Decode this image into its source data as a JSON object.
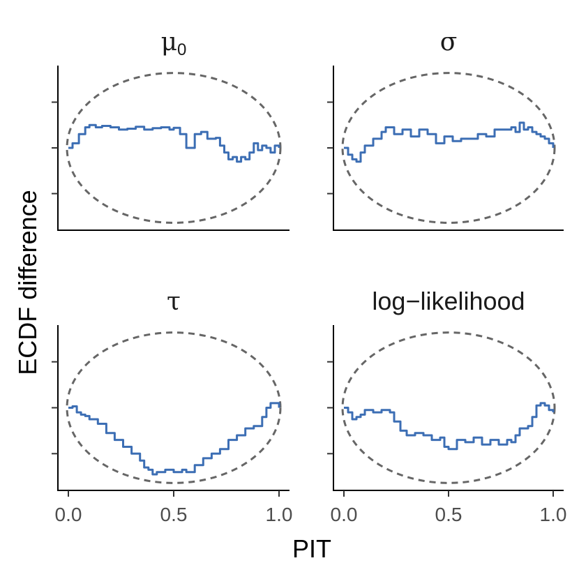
{
  "chart_data": {
    "type": "line",
    "xlabel": "PIT",
    "ylabel": "ECDF difference",
    "xlim": [
      0,
      1
    ],
    "ylim": [
      -0.18,
      0.18
    ],
    "x_ticks": [
      "0.0",
      "0.5",
      "1.0"
    ],
    "y_ticks_labeled": false,
    "grid": false,
    "legend": "none",
    "colors": {
      "ecdf": "#3c6eb4",
      "band": "#666666"
    },
    "panels": [
      {
        "title": "μ",
        "title_subscript": "0",
        "title_style": "greek",
        "ecdf": {
          "x": [
            0,
            0.02,
            0.05,
            0.08,
            0.1,
            0.13,
            0.16,
            0.2,
            0.24,
            0.28,
            0.32,
            0.36,
            0.4,
            0.44,
            0.48,
            0.5,
            0.53,
            0.56,
            0.6,
            0.63,
            0.66,
            0.7,
            0.72,
            0.74,
            0.76,
            0.78,
            0.8,
            0.82,
            0.84,
            0.86,
            0.88,
            0.9,
            0.92,
            0.94,
            0.96,
            0.98,
            1
          ],
          "y": [
            0,
            0.01,
            0.03,
            0.045,
            0.05,
            0.045,
            0.048,
            0.045,
            0.04,
            0.042,
            0.046,
            0.04,
            0.043,
            0.045,
            0.04,
            0.044,
            0.03,
            0.0,
            0.03,
            0.035,
            0.02,
            0.022,
            0.005,
            -0.01,
            -0.025,
            -0.02,
            -0.03,
            -0.02,
            -0.025,
            -0.01,
            0.01,
            -0.005,
            0.005,
            0.0,
            -0.01,
            0.005,
            0
          ]
        },
        "band": "ellipse"
      },
      {
        "title": "σ",
        "title_style": "greek",
        "ecdf": {
          "x": [
            0,
            0.02,
            0.04,
            0.06,
            0.08,
            0.1,
            0.14,
            0.18,
            0.2,
            0.24,
            0.28,
            0.32,
            0.36,
            0.4,
            0.44,
            0.48,
            0.52,
            0.56,
            0.6,
            0.64,
            0.68,
            0.72,
            0.76,
            0.8,
            0.82,
            0.84,
            0.86,
            0.88,
            0.9,
            0.92,
            0.94,
            0.96,
            0.98,
            1
          ],
          "y": [
            0,
            -0.015,
            -0.025,
            -0.03,
            -0.01,
            0.005,
            0.02,
            0.035,
            0.045,
            0.03,
            0.04,
            0.025,
            0.04,
            0.03,
            0.01,
            0.025,
            0.015,
            0.02,
            0.02,
            0.03,
            0.025,
            0.04,
            0.04,
            0.045,
            0.035,
            0.055,
            0.04,
            0.045,
            0.035,
            0.03,
            0.025,
            0.02,
            0.01,
            0
          ]
        },
        "band": "ellipse"
      },
      {
        "title": "τ",
        "title_style": "greek",
        "ecdf": {
          "x": [
            0,
            0.02,
            0.04,
            0.06,
            0.08,
            0.1,
            0.14,
            0.18,
            0.22,
            0.26,
            0.3,
            0.34,
            0.36,
            0.38,
            0.4,
            0.42,
            0.46,
            0.5,
            0.54,
            0.56,
            0.6,
            0.64,
            0.68,
            0.72,
            0.76,
            0.8,
            0.84,
            0.88,
            0.92,
            0.94,
            0.96,
            0.98,
            1
          ],
          "y": [
            0,
            0.003,
            -0.01,
            -0.015,
            -0.018,
            -0.025,
            -0.035,
            -0.055,
            -0.07,
            -0.085,
            -0.1,
            -0.115,
            -0.13,
            -0.135,
            -0.145,
            -0.14,
            -0.135,
            -0.14,
            -0.135,
            -0.14,
            -0.125,
            -0.11,
            -0.1,
            -0.09,
            -0.07,
            -0.06,
            -0.045,
            -0.04,
            -0.02,
            0.0,
            0.01,
            0.01,
            0.0
          ]
        },
        "band": "ellipse"
      },
      {
        "title": "log−likelihood",
        "title_style": "text",
        "ecdf": {
          "x": [
            0,
            0.02,
            0.04,
            0.06,
            0.08,
            0.1,
            0.14,
            0.18,
            0.22,
            0.24,
            0.27,
            0.3,
            0.34,
            0.38,
            0.42,
            0.46,
            0.48,
            0.5,
            0.54,
            0.58,
            0.62,
            0.66,
            0.7,
            0.74,
            0.78,
            0.8,
            0.82,
            0.84,
            0.88,
            0.9,
            0.92,
            0.94,
            0.96,
            0.98,
            1
          ],
          "y": [
            0,
            -0.01,
            -0.025,
            -0.02,
            -0.015,
            -0.005,
            -0.01,
            -0.005,
            -0.01,
            -0.03,
            -0.05,
            -0.06,
            -0.055,
            -0.06,
            -0.07,
            -0.065,
            -0.085,
            -0.09,
            -0.07,
            -0.075,
            -0.065,
            -0.08,
            -0.07,
            -0.08,
            -0.07,
            -0.075,
            -0.06,
            -0.045,
            -0.04,
            -0.02,
            0.005,
            0.01,
            0.005,
            -0.005,
            -0.01
          ]
        },
        "band": "ellipse"
      }
    ]
  }
}
